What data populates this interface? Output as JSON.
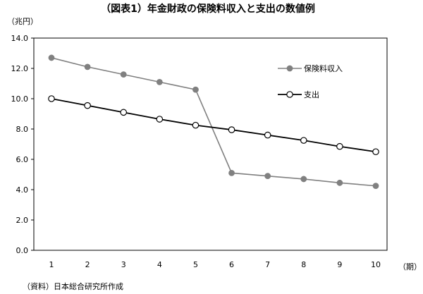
{
  "chart_data": {
    "type": "line",
    "title": "（図表1）年金財政の保険料収入と支出の数値例",
    "ylabel": "（兆円）",
    "xlabel": "（期）",
    "note": "（資料）日本総合研究所作成",
    "x": [
      1,
      2,
      3,
      4,
      5,
      6,
      7,
      8,
      9,
      10
    ],
    "xlim": [
      1,
      10
    ],
    "ylim": [
      0,
      14
    ],
    "yticks": [
      "0.0",
      "2.0",
      "4.0",
      "6.0",
      "8.0",
      "10.0",
      "12.0",
      "14.0"
    ],
    "xticks": [
      "1",
      "2",
      "3",
      "4",
      "5",
      "6",
      "7",
      "8",
      "9",
      "10"
    ],
    "grid": false,
    "legend_position": "right",
    "series": [
      {
        "name": "保険料収入",
        "color": "#808080",
        "marker": "filled-circle",
        "values": [
          12.7,
          12.1,
          11.6,
          11.1,
          10.6,
          5.1,
          4.9,
          4.7,
          4.45,
          4.25
        ]
      },
      {
        "name": "支出",
        "color": "#000000",
        "marker": "open-circle",
        "values": [
          10.0,
          9.55,
          9.1,
          8.65,
          8.25,
          7.95,
          7.6,
          7.25,
          6.85,
          6.5
        ]
      }
    ]
  }
}
